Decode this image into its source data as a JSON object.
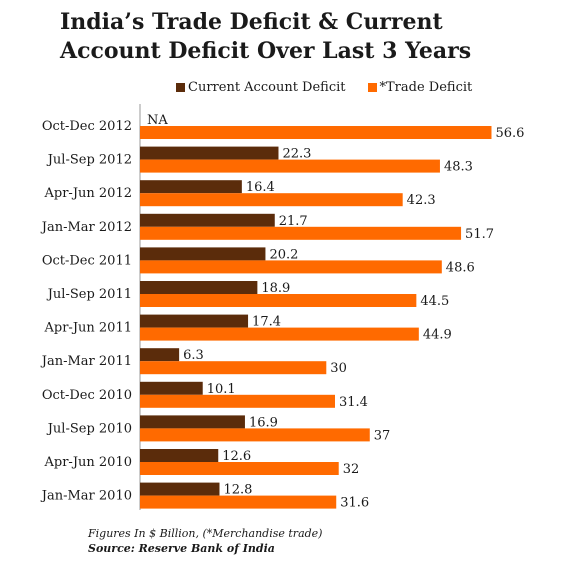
{
  "colors": {
    "current_account": "#5b2c0b",
    "trade": "#ff6a00"
  },
  "footnote": "Figures In $ Billion, (*Merchandise trade)",
  "source": "Source: Reserve Bank of India",
  "chart_data": {
    "type": "bar",
    "orientation": "horizontal",
    "title": "India’s Trade Deficit & Current Account Deficit Over Last 3 Years",
    "categories": [
      "Oct-Dec 2012",
      "Jul-Sep 2012",
      "Apr-Jun 2012",
      "Jan-Mar 2012",
      "Oct-Dec 2011",
      "Jul-Sep 2011",
      "Apr-Jun 2011",
      "Jan-Mar 2011",
      "Oct-Dec 2010",
      "Jul-Sep 2010",
      "Apr-Jun 2010",
      "Jan-Mar 2010"
    ],
    "series": [
      {
        "name": "Current Account Deficit",
        "values": [
          null,
          22.3,
          16.4,
          21.7,
          20.2,
          18.9,
          17.4,
          6.3,
          10.1,
          16.9,
          12.6,
          12.8
        ],
        "labels": [
          "NA",
          "22.3",
          "16.4",
          "21.7",
          "20.2",
          "18.9",
          "17.4",
          "6.3",
          "10.1",
          "16.9",
          "12.6",
          "12.8"
        ]
      },
      {
        "name": "*Trade Deficit",
        "values": [
          56.6,
          48.3,
          42.3,
          51.7,
          48.6,
          44.5,
          44.9,
          30,
          31.4,
          37,
          32,
          31.6
        ],
        "labels": [
          "56.6",
          "48.3",
          "42.3",
          "51.7",
          "48.6",
          "44.5",
          "44.9",
          "30",
          "31.4",
          "37",
          "32",
          "31.6"
        ]
      }
    ],
    "legend_position": "top",
    "grid": false
  }
}
